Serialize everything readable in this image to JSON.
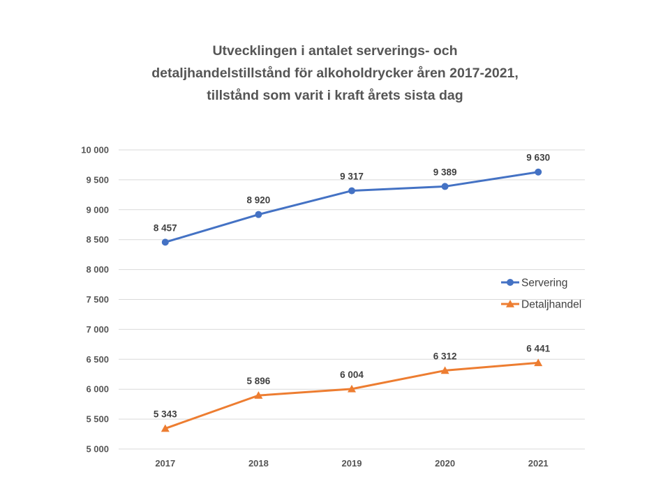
{
  "chart_data": {
    "type": "line",
    "title_lines": [
      "Utvecklingen i antalet serverings- och",
      "detaljhandelstillstånd för alkoholdrycker åren 2017-2021,",
      "tillstånd som varit i kraft årets sista dag"
    ],
    "categories": [
      "2017",
      "2018",
      "2019",
      "2020",
      "2021"
    ],
    "ylim": [
      5000,
      10000
    ],
    "yticks": [
      {
        "value": 5000,
        "label": "5 000"
      },
      {
        "value": 5500,
        "label": "5 500"
      },
      {
        "value": 6000,
        "label": "6 000"
      },
      {
        "value": 6500,
        "label": "6 500"
      },
      {
        "value": 7000,
        "label": "7 000"
      },
      {
        "value": 7500,
        "label": "7 500"
      },
      {
        "value": 8000,
        "label": "8 000"
      },
      {
        "value": 8500,
        "label": "8 500"
      },
      {
        "value": 9000,
        "label": "9 000"
      },
      {
        "value": 9500,
        "label": "9 500"
      },
      {
        "value": 10000,
        "label": "10 000"
      }
    ],
    "grid": true,
    "legend_position": "right",
    "series": [
      {
        "name": "Servering",
        "color": "#4472C4",
        "marker": "circle",
        "values": [
          8457,
          8920,
          9317,
          9389,
          9630
        ],
        "labels": [
          "8 457",
          "8 920",
          "9 317",
          "9 389",
          "9 630"
        ]
      },
      {
        "name": "Detaljhandel",
        "color": "#ED7D31",
        "marker": "triangle",
        "values": [
          5343,
          5896,
          6004,
          6312,
          6441
        ],
        "labels": [
          "5 343",
          "5 896",
          "6 004",
          "6 312",
          "6 441"
        ]
      }
    ]
  }
}
